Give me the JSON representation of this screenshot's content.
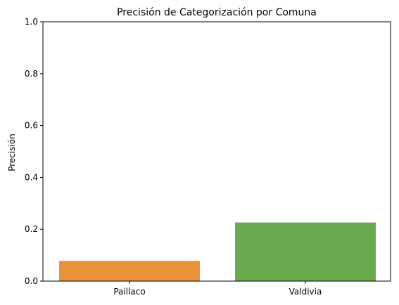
{
  "chart_data": {
    "type": "bar",
    "title": "Precisión de Categorización por Comuna",
    "xlabel": "",
    "ylabel": "Precisión",
    "categories": [
      "Paillaco",
      "Valdivia"
    ],
    "values": [
      0.078,
      0.226
    ],
    "colors": [
      "#e8923a",
      "#6aaa4f"
    ],
    "ylim": [
      0,
      1.0
    ],
    "yticks": [
      "0.0",
      "0.2",
      "0.4",
      "0.6",
      "0.8",
      "1.0"
    ],
    "grid": false,
    "legend": "none"
  }
}
